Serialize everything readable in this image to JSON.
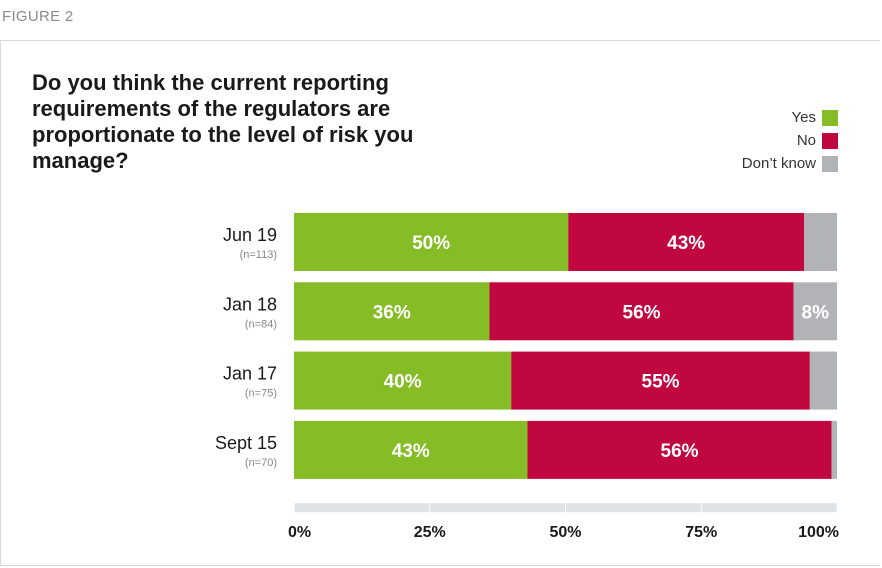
{
  "figure_label": "FIGURE 2",
  "colors": {
    "yes": "#86bc25",
    "no": "#c0073f",
    "dont_know": "#b2b3b6",
    "axis": "#dfe3e6"
  },
  "chart_data": {
    "type": "bar",
    "orientation": "horizontal",
    "stacked": true,
    "title": "Do you think the current reporting requirements of the regulators are proportionate to the level of risk you manage?",
    "categories": [
      "Jun 19",
      "Jan 18",
      "Jan 17",
      "Sept 15"
    ],
    "category_notes": [
      "(n=113)",
      "(n=84)",
      "(n=75)",
      "(n=70)"
    ],
    "series": [
      {
        "name": "Yes",
        "values": [
          50,
          36,
          40,
          43
        ],
        "labels": [
          "50%",
          "36%",
          "40%",
          "43%"
        ]
      },
      {
        "name": "No",
        "values": [
          43,
          56,
          55,
          56
        ],
        "labels": [
          "43%",
          "56%",
          "55%",
          "56%"
        ]
      },
      {
        "name": "Don’t know",
        "values": [
          6,
          8,
          5,
          1
        ],
        "labels": [
          "",
          "8%",
          "",
          ""
        ]
      }
    ],
    "xlim": [
      0,
      100
    ],
    "xticks": [
      "0%",
      "25%",
      "50%",
      "75%",
      "100%"
    ],
    "legend_position": "top-right"
  }
}
